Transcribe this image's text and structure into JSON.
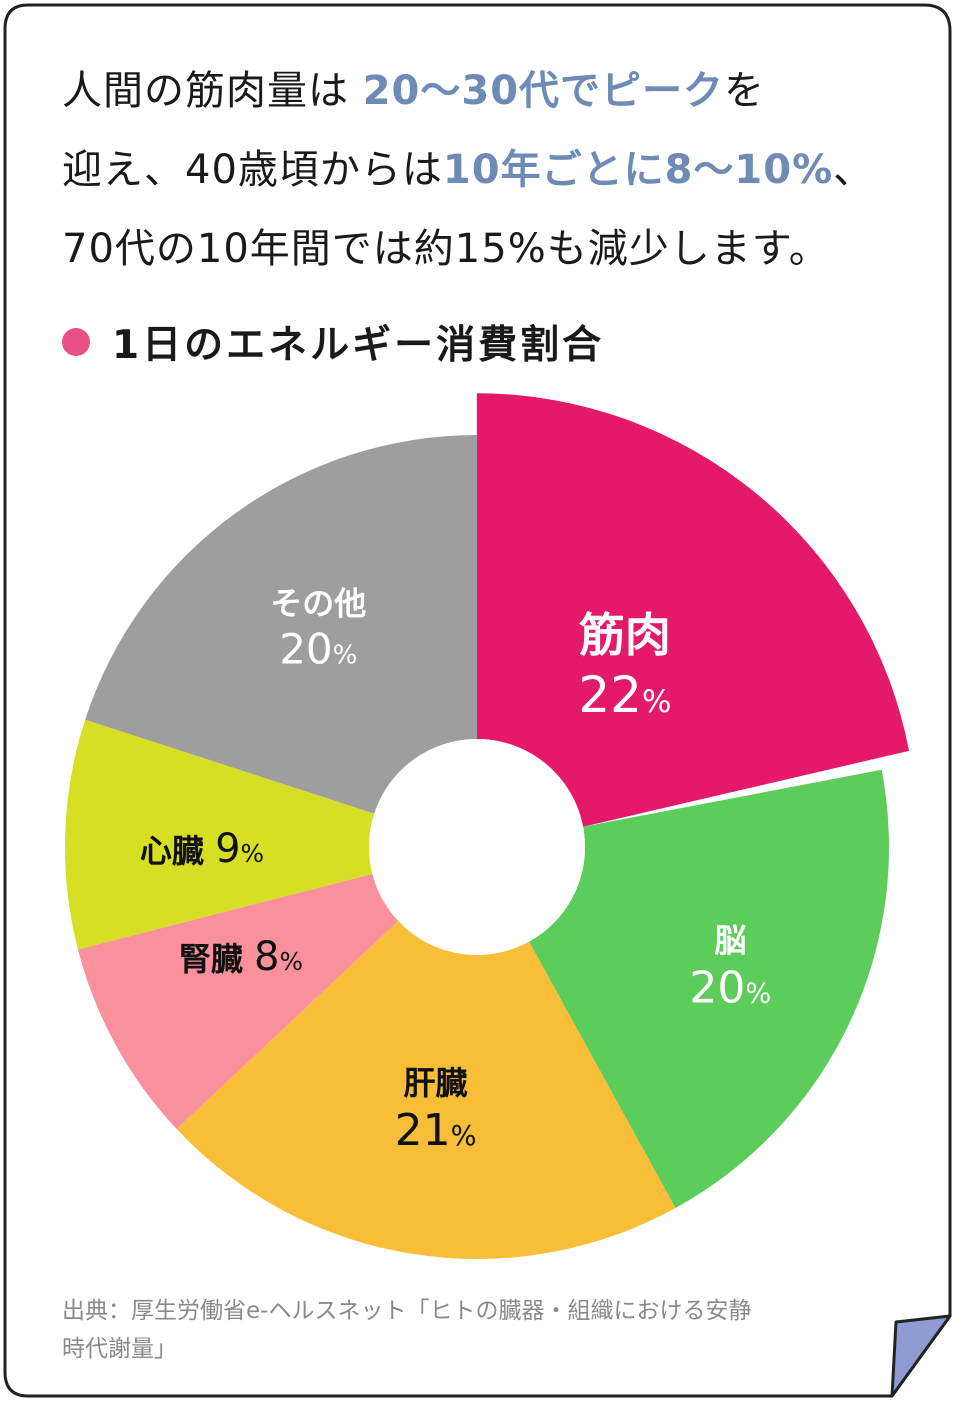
{
  "intro": {
    "line1_a": "人間の筋肉量は",
    "line1_hl": "20〜30代でピーク",
    "line1_b": "を",
    "line2_a": "迎え、40歳頃からは",
    "line2_hl": "10年ごとに8〜10%",
    "line2_b": "、",
    "line3": "70代の10年間では約15%も減少します。"
  },
  "chart_title": "1日のエネルギー消費割合",
  "source": {
    "line1": "出典：厚生労働省e-ヘルスネット「ヒトの臓器・組織における安静",
    "line2": "時代謝量」"
  },
  "colors": {
    "highlight_text": "#6e8bb5",
    "title_dot": "#ea4f86",
    "card_border": "#222222",
    "page_curl": "#8e9bd3"
  },
  "chart_data": {
    "type": "pie",
    "style": "donut",
    "title": "1日のエネルギー消費割合",
    "unit": "%",
    "exploded": "筋肉",
    "slices": [
      {
        "label": "筋肉",
        "value": 22,
        "value_label": "22%",
        "color": "#e5196a",
        "text_color": "#ffffff"
      },
      {
        "label": "脳",
        "value": 20,
        "value_label": "20%",
        "color": "#5ccd5a",
        "text_color": "#ffffff"
      },
      {
        "label": "肝臓",
        "value": 21,
        "value_label": "21%",
        "color": "#f8be38",
        "text_color": "#111111"
      },
      {
        "label": "腎臓",
        "value": 8,
        "value_label": "8%",
        "color": "#f9919d",
        "text_color": "#111111"
      },
      {
        "label": "心臓",
        "value": 9,
        "value_label": "9%",
        "color": "#d6df23",
        "text_color": "#111111"
      },
      {
        "label": "その他",
        "value": 20,
        "value_label": "20%",
        "color": "#9e9e9e",
        "text_color": "#ffffff"
      }
    ]
  }
}
